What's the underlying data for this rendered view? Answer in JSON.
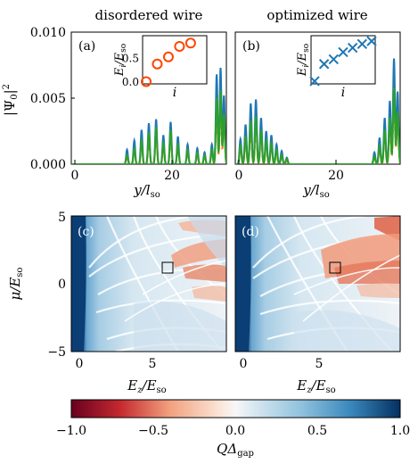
{
  "chart_data": [
    {
      "panel": "top-left",
      "type": "line",
      "title": "disordered wire",
      "panel_label": "(a)",
      "ylabel": "|Ψ0|²",
      "xlabel": "y/lso",
      "xlim": [
        0,
        32
      ],
      "ylim": [
        0,
        0.01
      ],
      "x_ticks": [
        "0",
        "20"
      ],
      "y_ticks": [
        "0.000",
        "0.005",
        "0.010"
      ],
      "series": [
        {
          "color": "#1f77b4",
          "peaks": [
            [
              11.5,
              0.0011
            ],
            [
              13,
              0.0018
            ],
            [
              14.5,
              0.0026
            ],
            [
              16,
              0.0031
            ],
            [
              17.5,
              0.0034
            ],
            [
              19,
              0.0022
            ],
            [
              20.5,
              0.0032
            ],
            [
              22,
              0.0021
            ],
            [
              24,
              0.0015
            ],
            [
              26,
              0.0012
            ],
            [
              27.5,
              0.0009
            ],
            [
              29,
              0.0015
            ],
            [
              30,
              0.0068
            ],
            [
              30.8,
              0.0073
            ],
            [
              31.5,
              0.0052
            ]
          ]
        },
        {
          "color": "#ff7f0e",
          "peaks": [
            [
              11.5,
              0.0006
            ],
            [
              13,
              0.001
            ],
            [
              14.5,
              0.0015
            ],
            [
              16,
              0.002
            ],
            [
              17.5,
              0.0024
            ],
            [
              19,
              0.0014
            ],
            [
              20.5,
              0.0022
            ],
            [
              22,
              0.0013
            ],
            [
              24,
              0.001
            ],
            [
              26,
              0.0008
            ],
            [
              27.5,
              0.0006
            ],
            [
              29,
              0.001
            ],
            [
              30,
              0.0042
            ],
            [
              30.8,
              0.0047
            ],
            [
              31.5,
              0.0033
            ]
          ]
        },
        {
          "color": "#2ca02c",
          "peaks": [
            [
              11.5,
              0.0007
            ],
            [
              13,
              0.0012
            ],
            [
              14.5,
              0.0018
            ],
            [
              16,
              0.0024
            ],
            [
              17.5,
              0.0028
            ],
            [
              19,
              0.0016
            ],
            [
              20.5,
              0.0026
            ],
            [
              22,
              0.0015
            ],
            [
              24,
              0.0011
            ],
            [
              26,
              0.0009
            ],
            [
              27.5,
              0.0007
            ],
            [
              29,
              0.0011
            ],
            [
              30,
              0.005
            ],
            [
              30.8,
              0.0056
            ],
            [
              31.5,
              0.0038
            ]
          ]
        }
      ],
      "inset": {
        "type": "scatter",
        "marker": "circle",
        "color": "#ff4500",
        "xlabel": "i",
        "ylabel": "Ei/Eso",
        "y_ticks": [
          "0.0",
          "0.5"
        ],
        "ylim": [
          0,
          0.9
        ],
        "values": [
          0.01,
          0.38,
          0.53,
          0.75,
          0.82
        ]
      }
    },
    {
      "panel": "top-right",
      "type": "line",
      "title": "optimized wire",
      "panel_label": "(b)",
      "ylabel": "Ei/Eso",
      "xlabel": "y/lso",
      "xlim": [
        0,
        32
      ],
      "ylim": [
        0,
        0.01
      ],
      "x_ticks": [
        "0",
        "20"
      ],
      "series": [
        {
          "color": "#1f77b4",
          "peaks": [
            [
              1,
              0.0019
            ],
            [
              2,
              0.003
            ],
            [
              3,
              0.0046
            ],
            [
              4,
              0.0049
            ],
            [
              5,
              0.0035
            ],
            [
              6,
              0.0025
            ],
            [
              7,
              0.0022
            ],
            [
              8,
              0.0015
            ],
            [
              9,
              0.001
            ],
            [
              10,
              0.0005
            ],
            [
              27,
              0.0009
            ],
            [
              28,
              0.002
            ],
            [
              29,
              0.0035
            ],
            [
              30,
              0.0048
            ],
            [
              30.8,
              0.008
            ],
            [
              31.5,
              0.0055
            ]
          ]
        },
        {
          "color": "#ff7f0e",
          "peaks": [
            [
              1,
              0.0012
            ],
            [
              2,
              0.0018
            ],
            [
              3,
              0.0028
            ],
            [
              4,
              0.0031
            ],
            [
              5,
              0.0022
            ],
            [
              6,
              0.0015
            ],
            [
              7,
              0.0014
            ],
            [
              8,
              0.0009
            ],
            [
              9,
              0.0006
            ],
            [
              10,
              0.0003
            ],
            [
              27,
              0.0005
            ],
            [
              28,
              0.0012
            ],
            [
              29,
              0.0022
            ],
            [
              30,
              0.003
            ],
            [
              30.8,
              0.005
            ],
            [
              31.5,
              0.0035
            ]
          ]
        },
        {
          "color": "#2ca02c",
          "peaks": [
            [
              1,
              0.0014
            ],
            [
              2,
              0.0021
            ],
            [
              3,
              0.0033
            ],
            [
              4,
              0.0036
            ],
            [
              5,
              0.0026
            ],
            [
              6,
              0.0018
            ],
            [
              7,
              0.0016
            ],
            [
              8,
              0.0011
            ],
            [
              9,
              0.0007
            ],
            [
              10,
              0.0004
            ],
            [
              27,
              0.0006
            ],
            [
              28,
              0.0014
            ],
            [
              29,
              0.0026
            ],
            [
              30,
              0.0035
            ],
            [
              30.8,
              0.0058
            ],
            [
              31.5,
              0.004
            ]
          ]
        }
      ],
      "inset": {
        "type": "scatter",
        "marker": "x",
        "color": "#1f77b4",
        "xlabel": "i",
        "ylabel": "Ei/Eso",
        "values": [
          0.02,
          0.38,
          0.48,
          0.63,
          0.72,
          0.8,
          0.86
        ]
      }
    },
    {
      "panel": "bottom-left",
      "type": "heatmap",
      "panel_label": "(c)",
      "xlabel": "Ez/Eso",
      "ylabel": "μ/Eso",
      "xlim": [
        0,
        9.6
      ],
      "ylim": [
        -5,
        5
      ],
      "x_ticks": [
        "0",
        "5"
      ],
      "y_ticks": [
        "5",
        "0",
        "−5"
      ],
      "marker_square": {
        "x": 6,
        "y": 1
      }
    },
    {
      "panel": "bottom-right",
      "type": "heatmap",
      "panel_label": "(d)",
      "xlabel": "Ez/Eso",
      "xlim": [
        0,
        9.6
      ],
      "ylim": [
        -5,
        5
      ],
      "x_ticks": [
        "0",
        "5"
      ],
      "marker_square": {
        "x": 6,
        "y": 1
      }
    }
  ],
  "colorbar": {
    "label": "QΔgap",
    "range": [
      -1,
      1
    ],
    "ticks": [
      "−1.0",
      "−0.5",
      "0.0",
      "0.5",
      "1.0"
    ]
  }
}
